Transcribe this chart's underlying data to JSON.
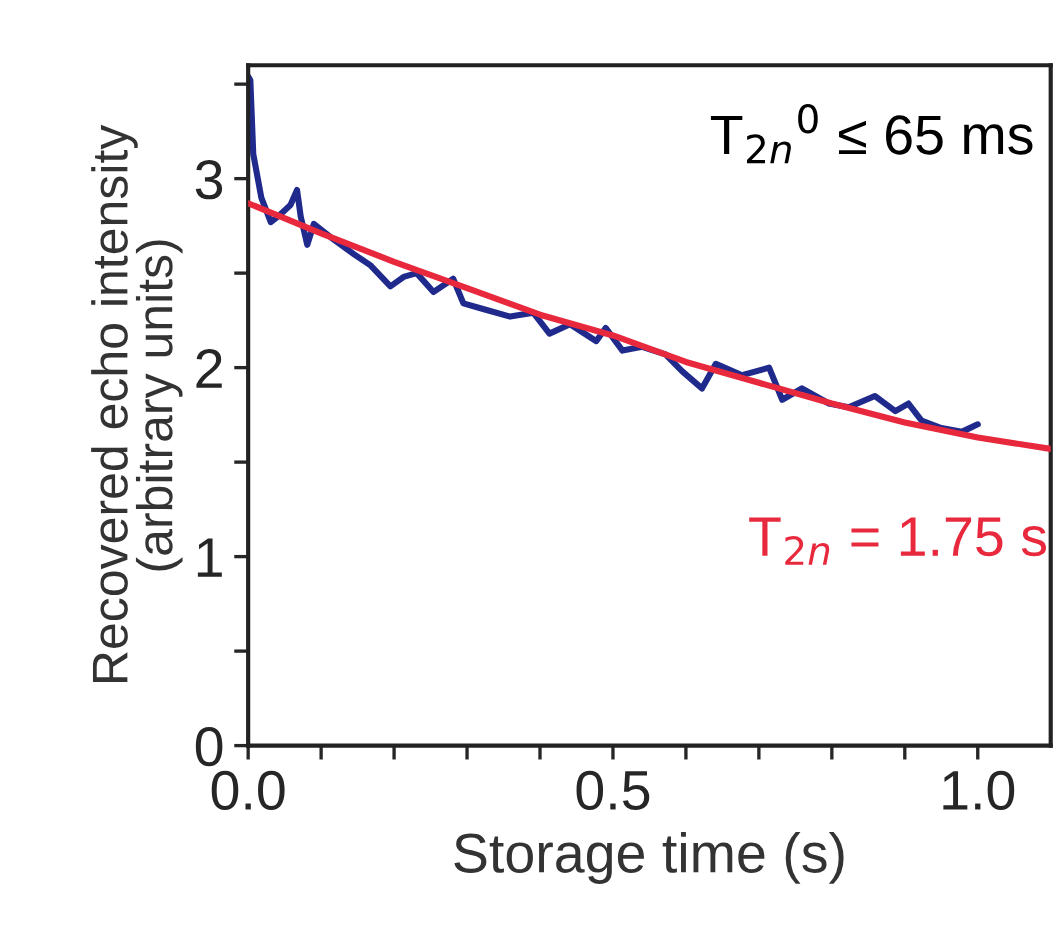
{
  "chart_data": {
    "type": "line",
    "xlabel": "Storage time (s)",
    "ylabel": "Recovered echo intensity\n(arbitrary units)",
    "series": [
      {
        "color": "#1f2a8c",
        "x": [
          0.0,
          0.003,
          0.007,
          0.018,
          0.031,
          0.044,
          0.058,
          0.067,
          0.072,
          0.081,
          0.09,
          0.113,
          0.145,
          0.168,
          0.195,
          0.213,
          0.231,
          0.254,
          0.281,
          0.295,
          0.322,
          0.359,
          0.391,
          0.413,
          0.441,
          0.477,
          0.49,
          0.513,
          0.54,
          0.572,
          0.595,
          0.622,
          0.641,
          0.677,
          0.714,
          0.732,
          0.759,
          0.796,
          0.823,
          0.859,
          0.887,
          0.905,
          0.923,
          0.95,
          0.978,
          1.0
        ],
        "values": [
          3.54,
          3.52,
          3.13,
          2.9,
          2.77,
          2.81,
          2.86,
          2.94,
          2.8,
          2.65,
          2.76,
          2.69,
          2.6,
          2.54,
          2.43,
          2.48,
          2.5,
          2.4,
          2.47,
          2.34,
          2.31,
          2.27,
          2.29,
          2.18,
          2.23,
          2.14,
          2.21,
          2.09,
          2.11,
          2.07,
          1.98,
          1.89,
          2.02,
          1.96,
          2.0,
          1.83,
          1.89,
          1.81,
          1.79,
          1.85,
          1.77,
          1.81,
          1.72,
          1.68,
          1.66,
          1.7
        ]
      },
      {
        "color": "#e8283c",
        "x": [
          0.0,
          0.1,
          0.2,
          0.3,
          0.4,
          0.5,
          0.6,
          0.7,
          0.8,
          0.9,
          1.0,
          1.1
        ],
        "values": [
          2.87,
          2.71,
          2.56,
          2.42,
          2.28,
          2.17,
          2.03,
          1.92,
          1.81,
          1.71,
          1.63,
          1.57
        ]
      }
    ],
    "xlim": [
      0,
      1.1
    ],
    "ylim": [
      0,
      3.6
    ],
    "xticks": [
      {
        "value": 0,
        "label": "0.0"
      },
      {
        "value": 0.1,
        "label": null
      },
      {
        "value": 0.2,
        "label": null
      },
      {
        "value": 0.3,
        "label": null
      },
      {
        "value": 0.4,
        "label": null
      },
      {
        "value": 0.5,
        "label": "0.5"
      },
      {
        "value": 0.6,
        "label": null
      },
      {
        "value": 0.7,
        "label": null
      },
      {
        "value": 0.8,
        "label": null
      },
      {
        "value": 0.9,
        "label": null
      },
      {
        "value": 1.0,
        "label": "1.0"
      }
    ],
    "yticks": [
      0,
      {
        "value": 0.5,
        "label": null
      },
      1,
      {
        "value": 1.5,
        "label": null
      },
      2,
      {
        "value": 2.5,
        "label": null
      },
      3,
      {
        "value": 3.5,
        "label": null
      }
    ],
    "annotations": [
      "T$_{2n}$$^{0}$ ≤ 65 ms",
      "T$_{2n}$ = 1.75 s"
    ],
    "line_style": "solid",
    "marker": "none",
    "grid": false,
    "legend": false
  }
}
